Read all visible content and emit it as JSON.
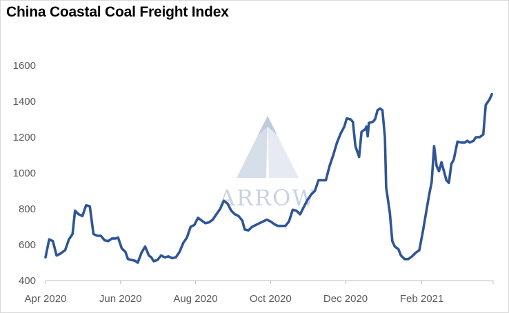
{
  "chart_data": {
    "type": "line",
    "title": "China Coastal Coal Freight Index",
    "watermark": "ARROW",
    "xlabel": "",
    "ylabel": "",
    "ylim": [
      400,
      1600
    ],
    "yticks": [
      "400",
      "600",
      "800",
      "1000",
      "1200",
      "1400",
      "1600"
    ],
    "xticks": [
      {
        "label": "Apr 2020",
        "date": "2020-04-01"
      },
      {
        "label": "Jun 2020",
        "date": "2020-06-01"
      },
      {
        "label": "Aug 2020",
        "date": "2020-08-01"
      },
      {
        "label": "Oct 2020",
        "date": "2020-10-01"
      },
      {
        "label": "Dec 2020",
        "date": "2020-12-01"
      },
      {
        "label": "Feb 2021",
        "date": "2021-02-01"
      }
    ],
    "xlim": [
      "2020-04-01",
      "2021-03-31"
    ],
    "grid": false,
    "line_color": "#2f5597",
    "series": [
      {
        "points": [
          [
            "2020-04-01",
            530
          ],
          [
            "2020-04-04",
            630
          ],
          [
            "2020-04-07",
            620
          ],
          [
            "2020-04-10",
            540
          ],
          [
            "2020-04-13",
            550
          ],
          [
            "2020-04-17",
            570
          ],
          [
            "2020-04-20",
            630
          ],
          [
            "2020-04-23",
            660
          ],
          [
            "2020-04-25",
            790
          ],
          [
            "2020-04-28",
            770
          ],
          [
            "2020-05-01",
            760
          ],
          [
            "2020-05-04",
            820
          ],
          [
            "2020-05-07",
            815
          ],
          [
            "2020-05-10",
            660
          ],
          [
            "2020-05-13",
            650
          ],
          [
            "2020-05-16",
            650
          ],
          [
            "2020-05-19",
            625
          ],
          [
            "2020-05-22",
            620
          ],
          [
            "2020-05-25",
            635
          ],
          [
            "2020-05-28",
            635
          ],
          [
            "2020-05-30",
            640
          ],
          [
            "2020-06-02",
            580
          ],
          [
            "2020-06-05",
            560
          ],
          [
            "2020-06-07",
            520
          ],
          [
            "2020-06-10",
            515
          ],
          [
            "2020-06-13",
            510
          ],
          [
            "2020-06-15",
            500
          ],
          [
            "2020-06-18",
            555
          ],
          [
            "2020-06-21",
            590
          ],
          [
            "2020-06-24",
            540
          ],
          [
            "2020-06-26",
            530
          ],
          [
            "2020-06-28",
            508
          ],
          [
            "2020-07-01",
            515
          ],
          [
            "2020-07-04",
            540
          ],
          [
            "2020-07-07",
            530
          ],
          [
            "2020-07-10",
            535
          ],
          [
            "2020-07-13",
            525
          ],
          [
            "2020-07-16",
            530
          ],
          [
            "2020-07-19",
            560
          ],
          [
            "2020-07-22",
            610
          ],
          [
            "2020-07-25",
            640
          ],
          [
            "2020-07-28",
            700
          ],
          [
            "2020-07-31",
            710
          ],
          [
            "2020-08-03",
            750
          ],
          [
            "2020-08-06",
            735
          ],
          [
            "2020-08-09",
            720
          ],
          [
            "2020-08-12",
            725
          ],
          [
            "2020-08-15",
            740
          ],
          [
            "2020-08-18",
            770
          ],
          [
            "2020-08-21",
            800
          ],
          [
            "2020-08-24",
            845
          ],
          [
            "2020-08-27",
            830
          ],
          [
            "2020-08-30",
            790
          ],
          [
            "2020-09-02",
            770
          ],
          [
            "2020-09-05",
            760
          ],
          [
            "2020-09-08",
            735
          ],
          [
            "2020-09-10",
            685
          ],
          [
            "2020-09-13",
            680
          ],
          [
            "2020-09-16",
            700
          ],
          [
            "2020-09-19",
            710
          ],
          [
            "2020-09-22",
            720
          ],
          [
            "2020-09-25",
            730
          ],
          [
            "2020-09-28",
            740
          ],
          [
            "2020-10-01",
            730
          ],
          [
            "2020-10-04",
            715
          ],
          [
            "2020-10-07",
            705
          ],
          [
            "2020-10-10",
            705
          ],
          [
            "2020-10-13",
            705
          ],
          [
            "2020-10-16",
            730
          ],
          [
            "2020-10-19",
            795
          ],
          [
            "2020-10-22",
            790
          ],
          [
            "2020-10-25",
            770
          ],
          [
            "2020-10-28",
            810
          ],
          [
            "2020-10-31",
            850
          ],
          [
            "2020-11-03",
            880
          ],
          [
            "2020-11-06",
            900
          ],
          [
            "2020-11-09",
            960
          ],
          [
            "2020-11-12",
            960
          ],
          [
            "2020-11-15",
            960
          ],
          [
            "2020-11-18",
            1040
          ],
          [
            "2020-11-21",
            1100
          ],
          [
            "2020-11-24",
            1170
          ],
          [
            "2020-11-27",
            1220
          ],
          [
            "2020-11-30",
            1260
          ],
          [
            "2020-12-02",
            1305
          ],
          [
            "2020-12-05",
            1300
          ],
          [
            "2020-12-07",
            1285
          ],
          [
            "2020-12-09",
            1150
          ],
          [
            "2020-12-12",
            1090
          ],
          [
            "2020-12-14",
            1230
          ],
          [
            "2020-12-17",
            1245
          ],
          [
            "2020-12-18",
            1260
          ],
          [
            "2020-12-19",
            1205
          ],
          [
            "2020-12-20",
            1280
          ],
          [
            "2020-12-23",
            1285
          ],
          [
            "2020-12-25",
            1300
          ],
          [
            "2020-12-27",
            1350
          ],
          [
            "2020-12-29",
            1360
          ],
          [
            "2020-12-31",
            1350
          ],
          [
            "2021-01-02",
            1200
          ],
          [
            "2021-01-03",
            920
          ],
          [
            "2021-01-06",
            780
          ],
          [
            "2021-01-08",
            620
          ],
          [
            "2021-01-10",
            590
          ],
          [
            "2021-01-13",
            575
          ],
          [
            "2021-01-15",
            540
          ],
          [
            "2021-01-18",
            520
          ],
          [
            "2021-01-21",
            520
          ],
          [
            "2021-01-24",
            535
          ],
          [
            "2021-01-27",
            555
          ],
          [
            "2021-01-30",
            570
          ],
          [
            "2021-02-02",
            680
          ],
          [
            "2021-02-05",
            800
          ],
          [
            "2021-02-07",
            880
          ],
          [
            "2021-02-09",
            950
          ],
          [
            "2021-02-11",
            1150
          ],
          [
            "2021-02-13",
            1040
          ],
          [
            "2021-02-15",
            1010
          ],
          [
            "2021-02-17",
            1060
          ],
          [
            "2021-02-19",
            1010
          ],
          [
            "2021-02-21",
            960
          ],
          [
            "2021-02-23",
            945
          ],
          [
            "2021-02-25",
            1050
          ],
          [
            "2021-02-27",
            1075
          ],
          [
            "2021-03-02",
            1175
          ],
          [
            "2021-03-05",
            1170
          ],
          [
            "2021-03-08",
            1170
          ],
          [
            "2021-03-10",
            1180
          ],
          [
            "2021-03-12",
            1170
          ],
          [
            "2021-03-15",
            1180
          ],
          [
            "2021-03-17",
            1200
          ],
          [
            "2021-03-20",
            1200
          ],
          [
            "2021-03-23",
            1215
          ],
          [
            "2021-03-25",
            1380
          ],
          [
            "2021-03-28",
            1410
          ],
          [
            "2021-03-30",
            1440
          ]
        ]
      }
    ]
  }
}
